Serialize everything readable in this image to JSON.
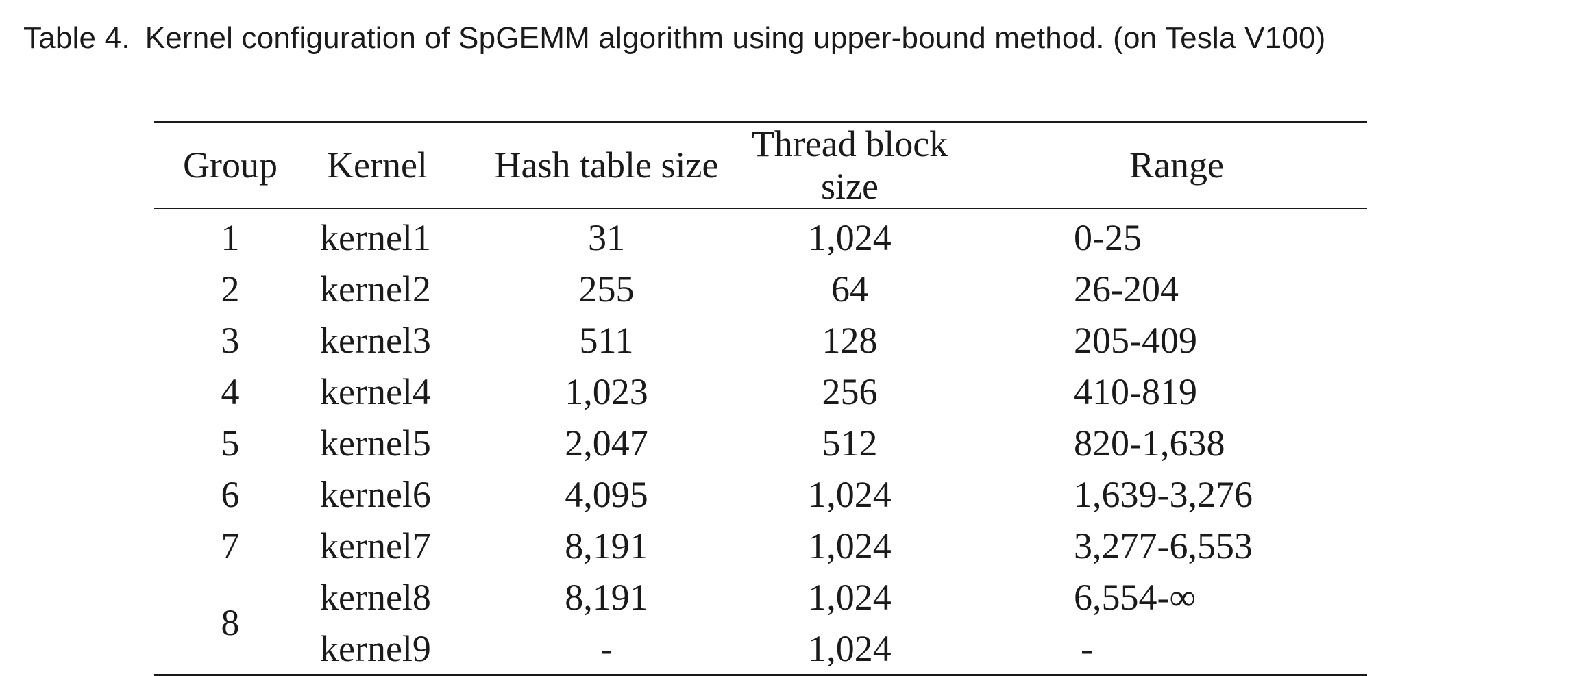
{
  "caption": {
    "label": "Table 4.",
    "text": "Kernel configuration of SpGEMM algorithm using upper-bound method. (on Tesla V100)"
  },
  "table": {
    "headers": [
      "Group",
      "Kernel",
      "Hash table size",
      "Thread block size",
      "Range"
    ],
    "rows": [
      {
        "group": "1",
        "kernel": "kernel1",
        "hash": "31",
        "thread": "1,024",
        "range": "0-25"
      },
      {
        "group": "2",
        "kernel": "kernel2",
        "hash": "255",
        "thread": "64",
        "range": "26-204"
      },
      {
        "group": "3",
        "kernel": "kernel3",
        "hash": "511",
        "thread": "128",
        "range": "205-409"
      },
      {
        "group": "4",
        "kernel": "kernel4",
        "hash": "1,023",
        "thread": "256",
        "range": "410-819"
      },
      {
        "group": "5",
        "kernel": "kernel5",
        "hash": "2,047",
        "thread": "512",
        "range": "820-1,638"
      },
      {
        "group": "6",
        "kernel": "kernel6",
        "hash": "4,095",
        "thread": "1,024",
        "range": "1,639-3,276"
      },
      {
        "group": "7",
        "kernel": "kernel7",
        "hash": "8,191",
        "thread": "1,024",
        "range": "3,277-6,553"
      },
      {
        "group": "8",
        "kernel": "kernel8",
        "hash": "8,191",
        "thread": "1,024",
        "range": "6,554-∞"
      },
      {
        "group": "",
        "kernel": "kernel9",
        "hash": "-",
        "thread": "1,024",
        "range": "-"
      }
    ]
  }
}
